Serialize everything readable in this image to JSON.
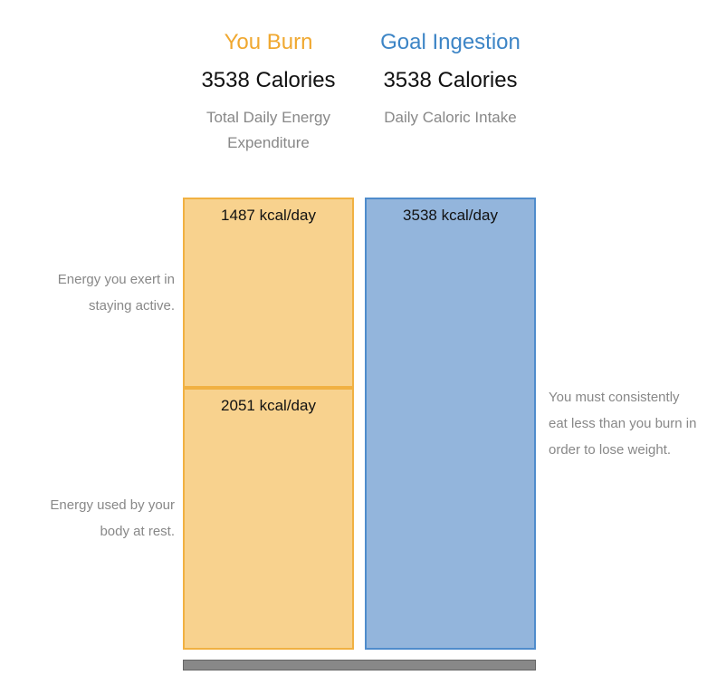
{
  "chart_data": {
    "type": "stacked-bar",
    "categories": [
      "You Burn",
      "Goal Ingestion"
    ],
    "category_colors": [
      "#f0a830",
      "#3d85c6"
    ],
    "totals": [
      "3538 Calories",
      "3538 Calories"
    ],
    "captions": [
      "Total Daily Energy Expenditure",
      "Daily Caloric Intake"
    ],
    "fill_colors": [
      "#f8d28e",
      "#93b5dc"
    ],
    "border_colors": [
      "#f1b142",
      "#4f8ccc"
    ],
    "series": [
      {
        "values": [
          2051,
          3538
        ],
        "value_labels": [
          "2051 kcal/day",
          "3538 kcal/day"
        ],
        "note": "Energy used by your body at rest."
      },
      {
        "values": [
          1487,
          null
        ],
        "value_labels": [
          "1487 kcal/day",
          null
        ],
        "note": "Energy you exert in staying active."
      }
    ],
    "annotation": "You must consistently eat less than you burn in order to lose weight."
  }
}
